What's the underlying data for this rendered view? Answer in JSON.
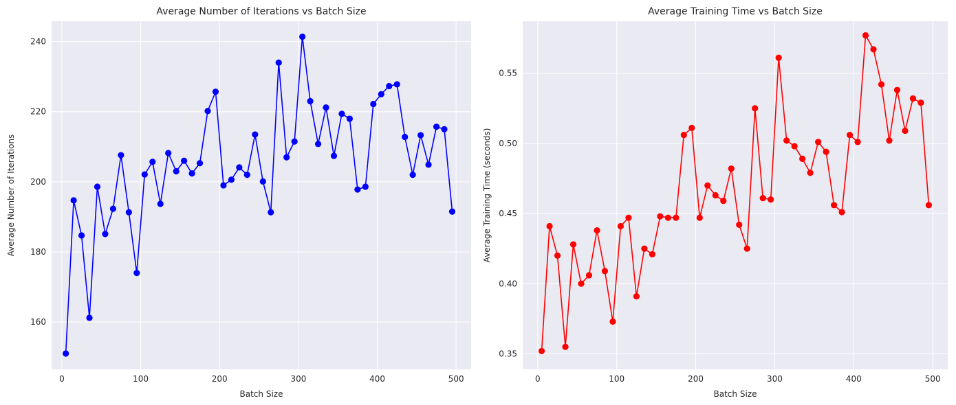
{
  "chart_data": [
    {
      "type": "line",
      "title": "Average Number of Iterations vs Batch Size",
      "xlabel": "Batch Size",
      "ylabel": "Average Number of Iterations",
      "xlim": [
        -13,
        519
      ],
      "ylim": [
        146.5,
        245.8
      ],
      "xticks": [
        0,
        100,
        200,
        300,
        400,
        500
      ],
      "yticks": [
        160,
        180,
        200,
        220,
        240
      ],
      "grid": true,
      "color": "#0000ff",
      "marker": "circle",
      "series": [
        {
          "x": [
            5,
            15,
            25,
            35,
            45,
            55,
            65,
            75,
            85,
            95,
            105,
            115,
            125,
            135,
            145,
            155,
            165,
            175,
            185,
            195,
            205,
            215,
            225,
            235,
            245,
            255,
            265,
            275,
            285,
            295,
            305,
            315,
            325,
            335,
            345,
            355,
            365,
            375,
            385,
            395,
            405,
            415,
            425,
            435,
            445,
            455,
            465,
            475,
            485,
            495
          ],
          "values": [
            151.0,
            194.7,
            184.7,
            161.2,
            198.6,
            185.1,
            192.3,
            207.6,
            191.3,
            174.0,
            202.1,
            205.7,
            193.7,
            208.2,
            203.0,
            206.0,
            202.4,
            205.3,
            220.2,
            225.7,
            199.0,
            200.6,
            204.1,
            202.0,
            213.5,
            200.1,
            191.3,
            234.0,
            207.0,
            211.5,
            241.4,
            223.0,
            210.8,
            221.2,
            207.4,
            219.4,
            218.0,
            197.8,
            198.6,
            222.2,
            225.0,
            227.3,
            227.8,
            212.8,
            202.0,
            213.3,
            204.9,
            215.7,
            215.0,
            191.5
          ]
        }
      ]
    },
    {
      "type": "line",
      "title": "Average Training Time vs Batch Size",
      "xlabel": "Batch Size",
      "ylabel": "Average Training Time (seconds)",
      "xlim": [
        -19,
        519
      ],
      "ylim": [
        0.339,
        0.587
      ],
      "xticks": [
        0,
        100,
        200,
        300,
        400,
        500
      ],
      "yticks": [
        0.35,
        0.4,
        0.45,
        0.5,
        0.55
      ],
      "ytick_labels": [
        "0.35",
        "0.40",
        "0.45",
        "0.50",
        "0.55"
      ],
      "grid": true,
      "color": "#ff0000",
      "marker": "circle",
      "series": [
        {
          "x": [
            5,
            15,
            25,
            35,
            45,
            55,
            65,
            75,
            85,
            95,
            105,
            115,
            125,
            135,
            145,
            155,
            165,
            175,
            185,
            195,
            205,
            215,
            225,
            235,
            245,
            255,
            265,
            275,
            285,
            295,
            305,
            315,
            325,
            335,
            345,
            355,
            365,
            375,
            385,
            395,
            405,
            415,
            425,
            435,
            445,
            455,
            465,
            475,
            485,
            495
          ],
          "values": [
            0.352,
            0.441,
            0.42,
            0.355,
            0.428,
            0.4,
            0.406,
            0.438,
            0.409,
            0.373,
            0.441,
            0.447,
            0.391,
            0.425,
            0.421,
            0.448,
            0.447,
            0.447,
            0.506,
            0.511,
            0.447,
            0.47,
            0.463,
            0.459,
            0.482,
            0.442,
            0.425,
            0.525,
            0.461,
            0.46,
            0.561,
            0.502,
            0.498,
            0.489,
            0.479,
            0.501,
            0.494,
            0.456,
            0.451,
            0.506,
            0.501,
            0.577,
            0.567,
            0.542,
            0.502,
            0.538,
            0.509,
            0.532,
            0.529,
            0.456
          ]
        }
      ]
    }
  ]
}
